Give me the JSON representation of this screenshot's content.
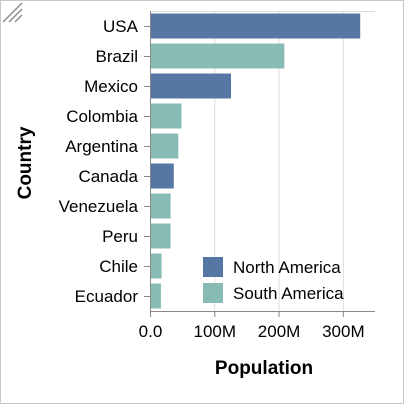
{
  "chart_data": {
    "type": "bar",
    "orientation": "horizontal",
    "categories": [
      "USA",
      "Brazil",
      "Mexico",
      "Colombia",
      "Argentina",
      "Canada",
      "Venezuela",
      "Peru",
      "Chile",
      "Ecuador"
    ],
    "values": [
      327000000,
      209000000,
      126000000,
      49000000,
      44000000,
      37000000,
      32000000,
      32000000,
      18000000,
      17000000
    ],
    "groups": [
      "North America",
      "South America",
      "North America",
      "South America",
      "South America",
      "North America",
      "South America",
      "South America",
      "South America",
      "South America"
    ],
    "xlabel": "Population",
    "ylabel": "Country",
    "xlim": [
      0,
      350000000
    ],
    "ticks": [
      {
        "value": 0,
        "label": "0.0"
      },
      {
        "value": 100000000,
        "label": "100M"
      },
      {
        "value": 200000000,
        "label": "200M"
      },
      {
        "value": 300000000,
        "label": "300M"
      }
    ],
    "grid": true,
    "legend": {
      "placement": "bottom-right",
      "entries": [
        {
          "name": "North America",
          "color": "#5677a4"
        },
        {
          "name": "South America",
          "color": "#87bbb3"
        }
      ]
    }
  }
}
